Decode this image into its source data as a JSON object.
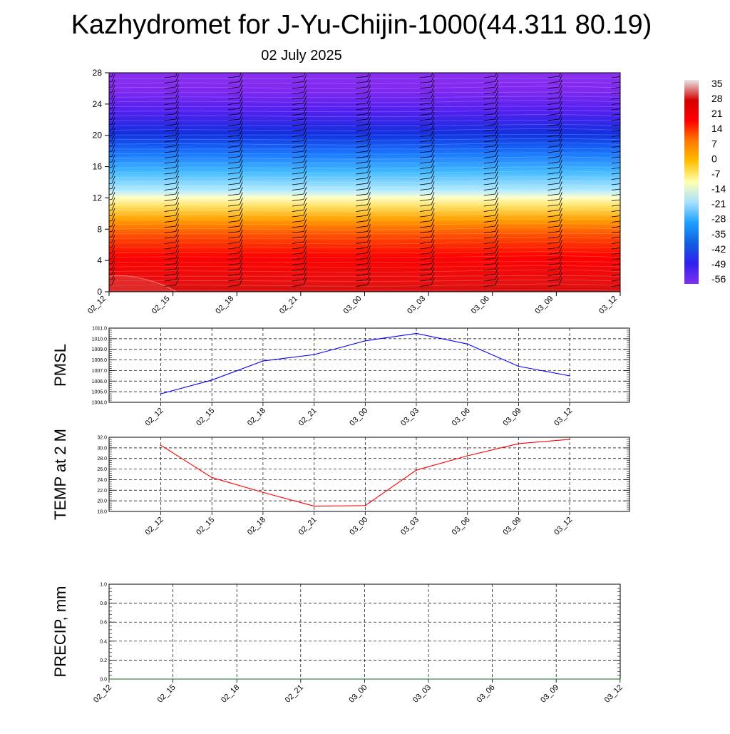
{
  "header": {
    "title": "Kazhydromet for J-Yu-Chijin-1000(44.311 80.19)",
    "date": "02 July 2025"
  },
  "colors": {
    "pressure_line": "#0000ff",
    "temp_line": "#ff0000",
    "precip_line": "#1a6b1a",
    "colorbar_stops": [
      "#e8e8e8",
      "#d40000",
      "#ff0000",
      "#ff7a00",
      "#ffc000",
      "#ffffb0",
      "#a8e0ff",
      "#1ea0ff",
      "#1060e0",
      "#3020f0",
      "#8030f0"
    ]
  },
  "chart_data": [
    {
      "type": "heatmap",
      "name": "upper-air-cross-section",
      "time_labels": [
        "02_12",
        "02_15",
        "02_18",
        "02_21",
        "03_00",
        "03_03",
        "03_06",
        "03_09",
        "03_12"
      ],
      "y_ticks": [
        "0",
        "4",
        "8",
        "12",
        "16",
        "20",
        "24",
        "28"
      ],
      "ylim": [
        0,
        28
      ],
      "colorbar_labels": [
        "35",
        "28",
        "21",
        "14",
        "7",
        "0",
        "-7",
        "-14",
        "-21",
        "-28",
        "-35",
        "-42",
        "-49",
        "-56"
      ],
      "value_range": [
        -60,
        38
      ],
      "grid": false,
      "legend_placement": "right",
      "wind_barbs": true
    },
    {
      "type": "line",
      "name": "pmsl",
      "ylabel": "PMSL",
      "x": [
        "02_12",
        "02_15",
        "02_18",
        "02_21",
        "03_00",
        "03_03",
        "03_06",
        "03_09",
        "03_12"
      ],
      "values": [
        1004.8,
        1006.1,
        1007.9,
        1008.5,
        1009.8,
        1010.5,
        1009.5,
        1007.4,
        1006.5
      ],
      "y_ticks": [
        "1004.0",
        "1005.0",
        "1006.0",
        "1007.0",
        "1008.0",
        "1009.0",
        "1010.0",
        "1011.0"
      ],
      "ylim": [
        1004,
        1011
      ],
      "grid": true
    },
    {
      "type": "line",
      "name": "temp-2m",
      "ylabel": "TEMP at 2 M",
      "x": [
        "02_12",
        "02_15",
        "02_18",
        "02_21",
        "03_00",
        "03_03",
        "03_06",
        "03_09",
        "03_12"
      ],
      "values": [
        30.5,
        24.4,
        21.6,
        19.0,
        19.1,
        25.8,
        28.5,
        30.8,
        31.6
      ],
      "y_ticks": [
        "18.0",
        "20.0",
        "22.0",
        "24.0",
        "26.0",
        "28.0",
        "30.0",
        "32.0"
      ],
      "ylim": [
        18,
        32
      ],
      "grid": true
    },
    {
      "type": "line",
      "name": "precip",
      "ylabel": "PRECIP, mm",
      "x": [
        "02_12",
        "02_15",
        "02_18",
        "02_21",
        "03_00",
        "03_03",
        "03_06",
        "03_09",
        "03_12"
      ],
      "values": [
        0,
        0,
        0,
        0,
        0,
        0,
        0,
        0,
        0
      ],
      "y_ticks": [
        "0.0",
        "0.2",
        "0.4",
        "0.6",
        "0.8",
        "1.0"
      ],
      "ylim": [
        0,
        1
      ],
      "grid": true
    }
  ]
}
